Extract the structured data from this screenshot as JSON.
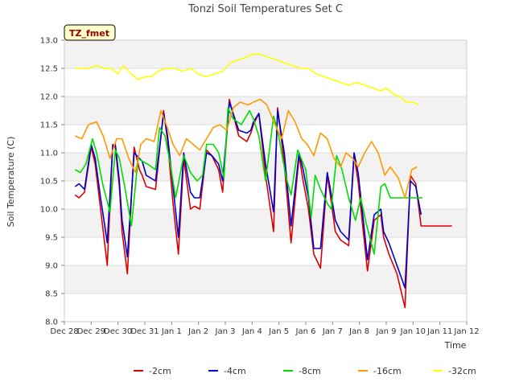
{
  "chart_data": {
    "type": "line",
    "title": "Tonzi Soil Temperatures Set C",
    "xlabel": "Time",
    "ylabel": "Soil Temperature (C)",
    "badge": "TZ_fmet",
    "ylim": [
      8.0,
      13.0
    ],
    "xlim": [
      0,
      15
    ],
    "x_ticks": [
      0,
      1,
      2,
      3,
      4,
      5,
      6,
      7,
      8,
      9,
      10,
      11,
      12,
      13,
      14,
      15
    ],
    "x_tick_labels": [
      "Dec 28",
      "Dec 29",
      "Dec 30",
      "Dec 31",
      "Jan 1",
      "Jan 2",
      "Jan 3",
      "Jan 4",
      "Jan 5",
      "Jan 6",
      "Jan 7",
      "Jan 8",
      "Jan 9",
      "Jan 10",
      "Jan 11",
      "Jan 12"
    ],
    "y_ticks": [
      8.0,
      8.5,
      9.0,
      9.5,
      10.0,
      10.5,
      11.0,
      11.5,
      12.0,
      12.5,
      13.0
    ],
    "y_tick_labels": [
      "8.0",
      "8.5",
      "9.0",
      "9.5",
      "10.0",
      "10.5",
      "11.0",
      "11.5",
      "12.0",
      "12.5",
      "13.0"
    ],
    "grid": true,
    "legend_position": "bottom",
    "series": [
      {
        "name": "-2cm",
        "color": "#dd0000",
        "x": [
          0.4,
          0.55,
          0.75,
          1.0,
          1.15,
          1.35,
          1.6,
          1.8,
          1.9,
          2.05,
          2.15,
          2.35,
          2.6,
          2.8,
          2.9,
          3.05,
          3.4,
          3.7,
          3.85,
          4.05,
          4.25,
          4.45,
          4.7,
          4.85,
          5.05,
          5.3,
          5.5,
          5.75,
          5.9,
          6.15,
          6.5,
          6.8,
          6.95,
          7.05,
          7.25,
          7.5,
          7.8,
          7.95,
          8.2,
          8.45,
          8.75,
          8.9,
          9.1,
          9.3,
          9.55,
          9.8,
          9.9,
          10.1,
          10.3,
          10.6,
          10.8,
          10.95,
          11.1,
          11.3,
          11.55,
          11.8,
          11.9,
          12.1,
          12.4,
          12.7,
          12.9,
          13.1,
          13.3,
          13.55,
          13.75,
          13.9,
          14.1,
          14.3,
          14.45
        ],
        "y": [
          10.25,
          10.2,
          10.3,
          11.1,
          10.8,
          10.0,
          9.0,
          11.15,
          11.1,
          10.4,
          9.6,
          8.85,
          11.1,
          10.7,
          10.6,
          10.4,
          10.35,
          11.75,
          11.2,
          10.1,
          9.2,
          10.9,
          10.0,
          10.05,
          10.0,
          11.05,
          10.95,
          10.7,
          10.3,
          11.95,
          11.3,
          11.2,
          11.35,
          11.5,
          11.7,
          10.6,
          9.6,
          11.8,
          10.8,
          9.4,
          10.95,
          10.5,
          10.0,
          9.2,
          8.95,
          10.6,
          10.3,
          9.6,
          9.45,
          9.35,
          10.95,
          10.5,
          9.8,
          8.9,
          9.8,
          9.9,
          9.5,
          9.2,
          8.85,
          8.25,
          10.6,
          10.45,
          9.7,
          9.7,
          9.7,
          9.7,
          9.7,
          9.7,
          9.7
        ]
      },
      {
        "name": "-4cm",
        "color": "#0000cc",
        "x": [
          0.4,
          0.55,
          0.75,
          1.0,
          1.15,
          1.35,
          1.6,
          1.8,
          1.9,
          2.05,
          2.15,
          2.35,
          2.6,
          2.8,
          2.9,
          3.05,
          3.4,
          3.7,
          3.85,
          4.05,
          4.25,
          4.45,
          4.7,
          4.85,
          5.05,
          5.3,
          5.5,
          5.75,
          5.9,
          6.15,
          6.5,
          6.8,
          6.95,
          7.05,
          7.25,
          7.5,
          7.8,
          7.95,
          8.2,
          8.45,
          8.75,
          8.9,
          9.1,
          9.3,
          9.55,
          9.8,
          9.9,
          10.1,
          10.3,
          10.6,
          10.8,
          10.95,
          11.1,
          11.3,
          11.55,
          11.8,
          11.9,
          12.1,
          12.4,
          12.7,
          12.9,
          13.1,
          13.3
        ],
        "y": [
          10.4,
          10.45,
          10.35,
          11.15,
          10.9,
          10.2,
          9.4,
          11.1,
          11.15,
          10.5,
          9.8,
          9.15,
          11.0,
          10.9,
          10.85,
          10.6,
          10.5,
          11.7,
          11.3,
          10.4,
          9.5,
          11.0,
          10.3,
          10.2,
          10.2,
          11.0,
          10.95,
          10.8,
          10.5,
          11.9,
          11.4,
          11.35,
          11.4,
          11.55,
          11.7,
          10.8,
          9.95,
          11.75,
          11.0,
          9.7,
          11.0,
          10.7,
          10.2,
          9.3,
          9.3,
          10.65,
          10.4,
          9.8,
          9.6,
          9.45,
          11.0,
          10.65,
          10.0,
          9.1,
          9.9,
          10.0,
          9.6,
          9.4,
          9.0,
          8.6,
          10.5,
          10.4,
          9.9
        ]
      },
      {
        "name": "-8cm",
        "color": "#00dd00",
        "x": [
          0.4,
          0.6,
          0.8,
          1.05,
          1.2,
          1.45,
          1.7,
          1.9,
          2.05,
          2.25,
          2.5,
          2.75,
          2.9,
          3.1,
          3.4,
          3.55,
          3.75,
          3.95,
          4.15,
          4.45,
          4.7,
          4.95,
          5.15,
          5.3,
          5.55,
          5.75,
          5.95,
          6.1,
          6.3,
          6.6,
          6.9,
          7.05,
          7.25,
          7.5,
          7.8,
          7.95,
          8.25,
          8.45,
          8.7,
          9.0,
          9.2,
          9.35,
          9.55,
          9.8,
          9.95,
          10.15,
          10.35,
          10.6,
          10.85,
          11.05,
          11.25,
          11.55,
          11.8,
          11.95,
          12.15,
          12.45,
          12.75,
          12.95,
          13.1,
          13.35
        ],
        "y": [
          10.7,
          10.65,
          10.8,
          11.25,
          11.0,
          10.4,
          9.95,
          11.05,
          10.9,
          10.4,
          9.7,
          10.9,
          10.85,
          10.8,
          10.7,
          11.45,
          11.3,
          10.8,
          10.2,
          10.95,
          10.65,
          10.5,
          10.6,
          11.15,
          11.15,
          11.0,
          10.55,
          11.8,
          11.6,
          11.5,
          11.75,
          11.6,
          11.3,
          10.5,
          11.65,
          11.4,
          10.6,
          10.25,
          11.05,
          10.7,
          9.85,
          10.6,
          10.35,
          10.1,
          10.0,
          10.95,
          10.7,
          10.2,
          9.8,
          10.2,
          9.75,
          9.2,
          10.4,
          10.45,
          10.2,
          10.2,
          10.2,
          10.2,
          10.2,
          10.2
        ]
      },
      {
        "name": "-16cm",
        "color": "#ff9900",
        "x": [
          0.4,
          0.65,
          0.9,
          1.2,
          1.45,
          1.7,
          1.95,
          2.15,
          2.4,
          2.65,
          2.85,
          3.05,
          3.35,
          3.6,
          3.8,
          4.05,
          4.3,
          4.55,
          4.8,
          5.05,
          5.3,
          5.55,
          5.8,
          6.05,
          6.3,
          6.55,
          6.85,
          7.05,
          7.3,
          7.55,
          7.85,
          8.1,
          8.35,
          8.6,
          8.85,
          9.05,
          9.3,
          9.55,
          9.8,
          10.05,
          10.3,
          10.5,
          10.75,
          10.95,
          11.2,
          11.45,
          11.7,
          11.95,
          12.15,
          12.45,
          12.7,
          12.95,
          13.15
        ],
        "y": [
          11.3,
          11.25,
          11.5,
          11.55,
          11.3,
          10.9,
          11.25,
          11.25,
          10.9,
          10.65,
          11.15,
          11.25,
          11.2,
          11.75,
          11.5,
          11.15,
          10.95,
          11.25,
          11.15,
          11.05,
          11.25,
          11.45,
          11.5,
          11.4,
          11.8,
          11.9,
          11.85,
          11.9,
          11.95,
          11.85,
          11.5,
          11.25,
          11.75,
          11.55,
          11.25,
          11.15,
          10.95,
          11.35,
          11.25,
          10.9,
          10.75,
          11.0,
          10.9,
          10.75,
          11.0,
          11.2,
          11.0,
          10.6,
          10.75,
          10.55,
          10.2,
          10.7,
          10.75
        ]
      },
      {
        "name": "-32cm",
        "color": "#ffff00",
        "x": [
          0.4,
          0.6,
          0.9,
          1.2,
          1.5,
          1.75,
          2.0,
          2.2,
          2.5,
          2.75,
          3.0,
          3.25,
          3.5,
          3.8,
          4.1,
          4.4,
          4.7,
          5.0,
          5.3,
          5.6,
          5.9,
          6.2,
          6.5,
          6.8,
          7.0,
          7.3,
          7.6,
          7.9,
          8.2,
          8.5,
          8.8,
          9.1,
          9.4,
          9.7,
          10.0,
          10.3,
          10.6,
          10.9,
          11.2,
          11.5,
          11.8,
          12.0,
          12.25,
          12.5,
          12.75,
          13.0,
          13.2
        ],
        "y": [
          12.5,
          12.5,
          12.5,
          12.55,
          12.5,
          12.5,
          12.4,
          12.55,
          12.4,
          12.3,
          12.35,
          12.35,
          12.45,
          12.5,
          12.5,
          12.45,
          12.5,
          12.4,
          12.35,
          12.4,
          12.45,
          12.6,
          12.65,
          12.7,
          12.75,
          12.75,
          12.7,
          12.65,
          12.6,
          12.55,
          12.5,
          12.5,
          12.4,
          12.35,
          12.3,
          12.25,
          12.2,
          12.25,
          12.2,
          12.15,
          12.1,
          12.15,
          12.05,
          12.0,
          11.9,
          11.9,
          11.85
        ]
      }
    ]
  }
}
